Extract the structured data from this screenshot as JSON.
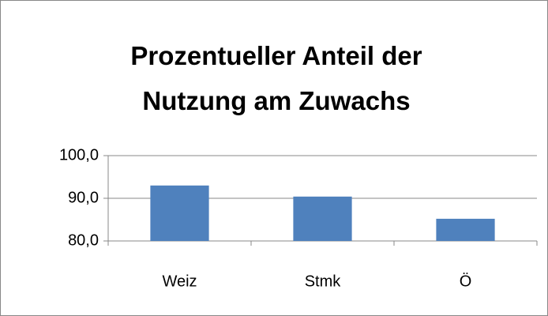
{
  "chart_data": {
    "type": "bar",
    "title": "Prozentueller Anteil der Nutzung am Zuwachs",
    "categories": [
      "Weiz",
      "Stmk",
      "Ö"
    ],
    "values": [
      93.0,
      90.4,
      85.2
    ],
    "color": "#4f81bd",
    "ylim": [
      80,
      100
    ],
    "yticks": [
      {
        "value": 80,
        "label": "80,0"
      },
      {
        "value": 90,
        "label": "90,0"
      },
      {
        "value": 100,
        "label": "100,0"
      }
    ],
    "grid": true
  }
}
